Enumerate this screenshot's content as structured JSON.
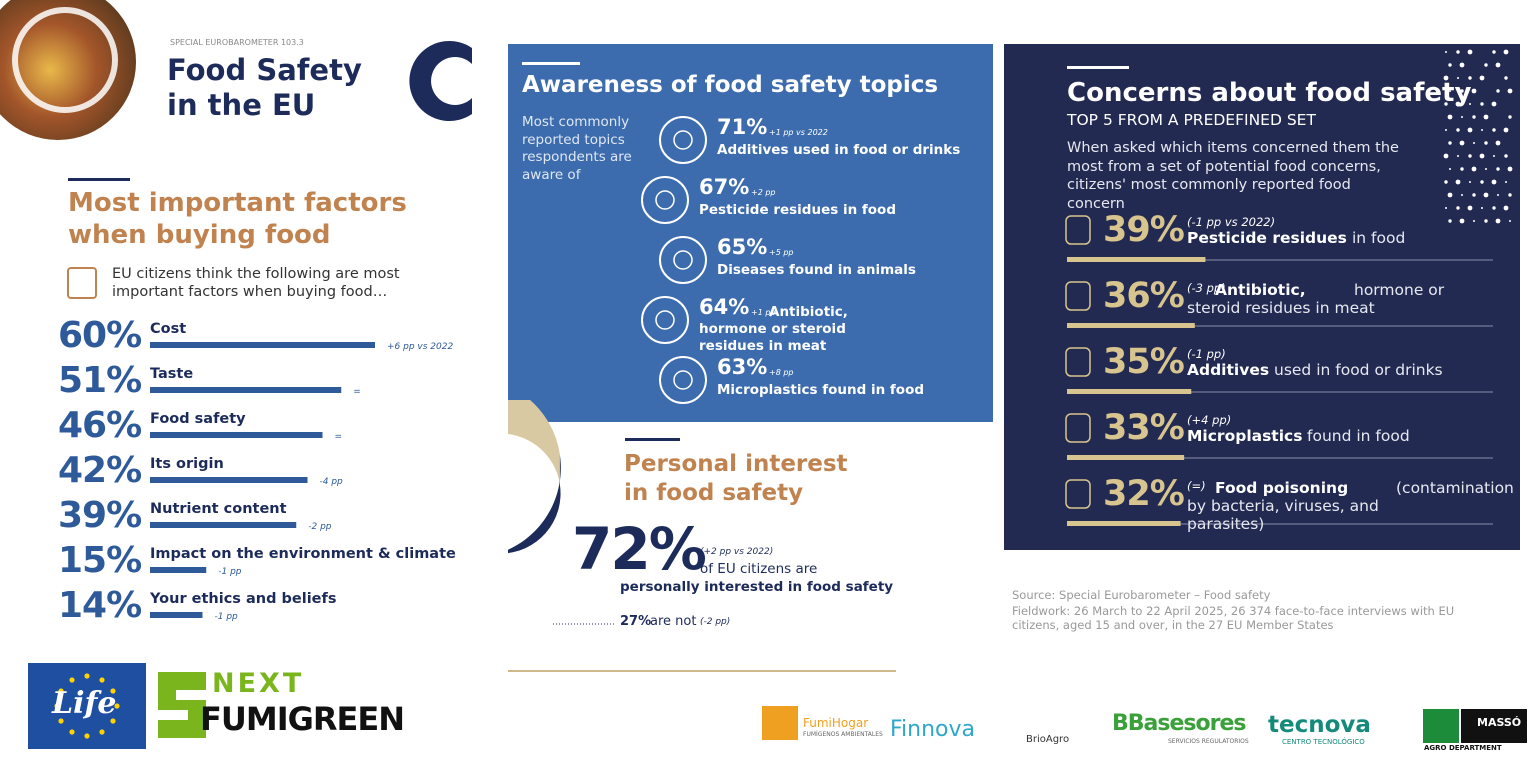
{
  "header": {
    "series": "SPECIAL EUROBAROMETER 103.3",
    "title_line1": "Food Safety",
    "title_line2": "in the EU"
  },
  "factors": {
    "title_line1": "Most important factors",
    "title_line2": "when buying food",
    "intro": "EU citizens think the following are most important factors when buying food…",
    "items": [
      {
        "value": 60,
        "label": "60%",
        "name": "Cost",
        "change": "+6 pp vs 2022"
      },
      {
        "value": 51,
        "label": "51%",
        "name": "Taste",
        "change": "="
      },
      {
        "value": 46,
        "label": "46%",
        "name": "Food safety",
        "change": "="
      },
      {
        "value": 42,
        "label": "42%",
        "name": "Its origin",
        "change": "-4 pp"
      },
      {
        "value": 39,
        "label": "39%",
        "name": "Nutrient content",
        "change": "-2 pp"
      },
      {
        "value": 15,
        "label": "15%",
        "name": "Impact on the environment & climate",
        "change": "-1 pp"
      },
      {
        "value": 14,
        "label": "14%",
        "name": "Your ethics and beliefs",
        "change": "-1 pp"
      }
    ]
  },
  "awareness": {
    "title": "Awareness of food safety topics",
    "intro": "Most commonly reported topics respondents are aware of",
    "items": [
      {
        "value": 71,
        "label": "71%",
        "change": "+1 pp vs 2022",
        "name": "Additives used in food or drinks"
      },
      {
        "value": 67,
        "label": "67%",
        "change": "+2 pp",
        "name": "Pesticide residues in food"
      },
      {
        "value": 65,
        "label": "65%",
        "change": "+5 pp",
        "name": "Diseases found in animals"
      },
      {
        "value": 64,
        "label": "64%",
        "change": "+1 pp",
        "name": "Antibiotic, hormone or steroid residues in meat"
      },
      {
        "value": 63,
        "label": "63%",
        "change": "+8 pp",
        "name": "Microplastics found in food"
      }
    ]
  },
  "interest": {
    "title_line1": "Personal interest",
    "title_line2": "in food safety",
    "value": 72,
    "label": "72%",
    "change": "(+2 pp vs 2022)",
    "text_line1": "of EU citizens are",
    "text_line2": "personally interested in food safety",
    "not_value": 27,
    "not_label": "27%",
    "not_text": "are not",
    "not_change": "(-2 pp)"
  },
  "concerns": {
    "title": "Concerns about food safety",
    "subtitle": "TOP 5 FROM A PREDEFINED SET",
    "intro": "When asked which items concerned them the most from a set of potential food concerns, citizens' most commonly reported food concern",
    "items": [
      {
        "value": 39,
        "label": "39%",
        "change": "(-1 pp vs 2022)",
        "bold": "Pesticide residues",
        "rest": "in food"
      },
      {
        "value": 36,
        "label": "36%",
        "change": "(-3 pp)",
        "bold": "Antibiotic,",
        "rest": "hormone or steroid residues in meat"
      },
      {
        "value": 35,
        "label": "35%",
        "change": "(-1 pp)",
        "bold": "Additives",
        "rest": "used in food or drinks"
      },
      {
        "value": 33,
        "label": "33%",
        "change": "(+4 pp)",
        "bold": "Microplastics",
        "rest": "found in food"
      },
      {
        "value": 32,
        "label": "32%",
        "change": "(=)",
        "bold": "Food poisoning",
        "rest": "(contamination by bacteria, viruses, and parasites)"
      }
    ]
  },
  "source": {
    "line1": "Source: Special Eurobarometer – Food safety",
    "line2": "Fieldwork: 26 March to 22 April 2025, 26 374 face-to-face interviews with EU citizens, aged 15 and over, in the 27 EU Member States"
  },
  "logos": {
    "life": "Life",
    "next": "NEXT",
    "fumigreen": "FUMIGREEN",
    "fumihogar": "FumiHogar",
    "fumihogar_sub": "FUMÍGENOS AMBIENTALES",
    "finnova": "Finnova",
    "brioagro": "BrioAgro",
    "bbasesores": "BBasesores",
    "bbasesores_sub": "SERVICIOS REGULATORIOS",
    "tecnova": "tecnova",
    "tecnova_sub": "CENTRO TECNOLÓGICO",
    "masso": "MASSÓ",
    "masso_sub": "AGRO DEPARTMENT"
  }
}
